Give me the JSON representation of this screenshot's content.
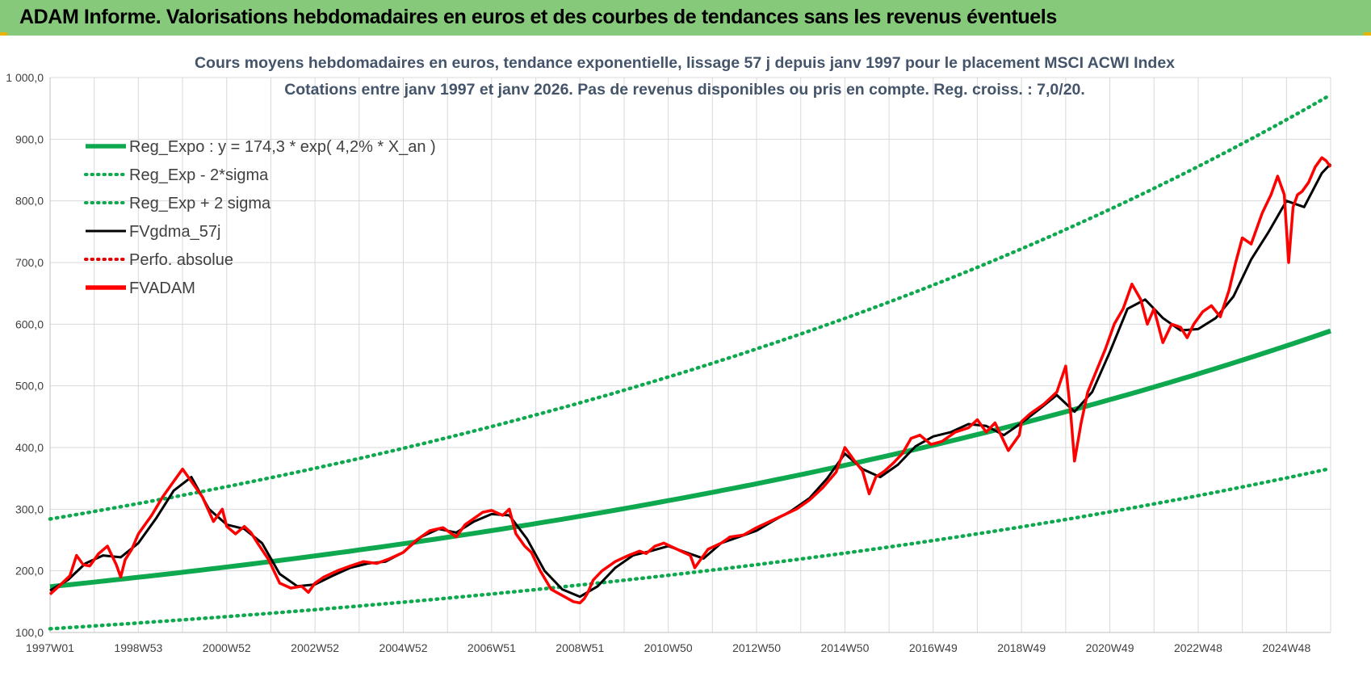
{
  "window": {
    "title": "ADAM Informe. Valorisations hebdomadaires en euros et des courbes de tendances sans les revenus éventuels"
  },
  "colors": {
    "title_bar": "#86c97a",
    "grid": "#d9d9d9",
    "regression": "#0ea84f",
    "sigma_band": "#0ea84f",
    "gdma": "#000000",
    "perfo": "#e00000",
    "fvadam": "#ff0000"
  },
  "chart_data": {
    "type": "line",
    "title_line1": "Cours moyens hebdomadaires en euros, tendance exponentielle, lissage 57 j depuis janv 1997  pour le placement MSCI ACWI Index",
    "title_line2": "Cotations entre janv 1997 et janv 2026. Pas de revenus disponibles ou pris  en compte. Reg. croiss. : 7,0/20.",
    "xlabel": "",
    "ylabel": "",
    "ylim": [
      100,
      1000
    ],
    "xlim": [
      1997.0,
      2026.0
    ],
    "yticks": [
      100,
      200,
      300,
      400,
      500,
      600,
      700,
      800,
      900,
      1000
    ],
    "ytick_labels": [
      "100,0",
      "200,0",
      "300,0",
      "400,0",
      "500,0",
      "600,0",
      "700,0",
      "800,0",
      "900,0",
      "1 000,0"
    ],
    "xtick_labels": [
      "1997W01",
      "1998W53",
      "2000W52",
      "2002W52",
      "2004W52",
      "2006W51",
      "2008W51",
      "2010W50",
      "2012W50",
      "2014W50",
      "2016W49",
      "2018W49",
      "2020W49",
      "2022W48",
      "2024W48"
    ],
    "xtick_years": [
      1997.0,
      1999.0,
      2001.0,
      2003.0,
      2005.0,
      2007.0,
      2009.0,
      2011.0,
      2013.0,
      2015.0,
      2017.0,
      2019.0,
      2021.0,
      2023.0,
      2025.0
    ],
    "grid": true,
    "legend_position": "top-left",
    "legend": [
      {
        "label": "Reg_Expo : y = 174,3 * exp( 4,2% *  X_an )",
        "color": "#0ea84f",
        "style": "solid-thick"
      },
      {
        "label": "Reg_Exp - 2*sigma",
        "color": "#0ea84f",
        "style": "dotted"
      },
      {
        "label": "Reg_Exp + 2 sigma",
        "color": "#0ea84f",
        "style": "dotted"
      },
      {
        "label": "FVgdma_57j",
        "color": "#000000",
        "style": "solid"
      },
      {
        "label": "Perfo. absolue",
        "color": "#e00000",
        "style": "dotted"
      },
      {
        "label": "FVADAM",
        "color": "#ff0000",
        "style": "solid-thick"
      }
    ],
    "regression": {
      "a": 174.3,
      "g": 0.042,
      "x0": 1997.0
    },
    "band_lower": {
      "start": 106,
      "end": 366
    },
    "band_upper": {
      "start": 284,
      "end": 972
    },
    "fvadam": {
      "x": [
        1997.0,
        1997.2,
        1997.45,
        1997.6,
        1997.75,
        1997.9,
        1998.1,
        1998.3,
        1998.5,
        1998.6,
        1998.7,
        1998.85,
        1999.0,
        1999.3,
        1999.55,
        1999.8,
        2000.0,
        2000.2,
        2000.45,
        2000.7,
        2000.9,
        2001.0,
        2001.2,
        2001.4,
        2001.55,
        2001.7,
        2001.95,
        2002.2,
        2002.45,
        2002.7,
        2002.85,
        2003.0,
        2003.2,
        2003.5,
        2003.8,
        2004.1,
        2004.4,
        2004.7,
        2005.0,
        2005.3,
        2005.6,
        2005.9,
        2006.2,
        2006.4,
        2006.6,
        2006.8,
        2007.0,
        2007.25,
        2007.4,
        2007.55,
        2007.75,
        2007.9,
        2008.1,
        2008.35,
        2008.6,
        2008.85,
        2009.0,
        2009.1,
        2009.18,
        2009.3,
        2009.5,
        2009.8,
        2010.1,
        2010.35,
        2010.5,
        2010.7,
        2010.9,
        2011.2,
        2011.5,
        2011.6,
        2011.7,
        2011.9,
        2012.2,
        2012.4,
        2012.7,
        2013.0,
        2013.3,
        2013.6,
        2013.9,
        2014.2,
        2014.5,
        2014.8,
        2015.0,
        2015.2,
        2015.4,
        2015.55,
        2015.7,
        2015.9,
        2016.1,
        2016.3,
        2016.5,
        2016.7,
        2016.95,
        2017.2,
        2017.5,
        2017.8,
        2018.0,
        2018.2,
        2018.4,
        2018.7,
        2018.95,
        2019.0,
        2019.2,
        2019.5,
        2019.8,
        2020.0,
        2020.12,
        2020.2,
        2020.35,
        2020.5,
        2020.7,
        2020.9,
        2021.1,
        2021.3,
        2021.5,
        2021.7,
        2021.85,
        2022.0,
        2022.2,
        2022.4,
        2022.6,
        2022.75,
        2022.9,
        2023.1,
        2023.3,
        2023.5,
        2023.7,
        2023.85,
        2024.0,
        2024.2,
        2024.45,
        2024.65,
        2024.8,
        2024.95,
        2025.05,
        2025.15,
        2025.25,
        2025.35,
        2025.5,
        2025.65,
        2025.8,
        2025.9,
        2026.0
      ],
      "y": [
        162,
        175,
        192,
        225,
        210,
        208,
        228,
        240,
        210,
        190,
        218,
        235,
        260,
        290,
        320,
        345,
        365,
        345,
        320,
        280,
        300,
        272,
        260,
        272,
        262,
        245,
        218,
        180,
        172,
        175,
        165,
        180,
        190,
        200,
        208,
        215,
        212,
        220,
        230,
        250,
        265,
        270,
        255,
        275,
        285,
        295,
        298,
        290,
        300,
        260,
        240,
        230,
        200,
        170,
        160,
        150,
        148,
        155,
        165,
        185,
        200,
        215,
        225,
        232,
        228,
        240,
        245,
        235,
        225,
        205,
        215,
        235,
        245,
        255,
        258,
        270,
        280,
        290,
        300,
        315,
        335,
        360,
        400,
        380,
        362,
        325,
        352,
        362,
        375,
        390,
        415,
        420,
        405,
        410,
        425,
        432,
        445,
        425,
        440,
        395,
        420,
        442,
        455,
        470,
        490,
        532,
        450,
        378,
        440,
        490,
        525,
        560,
        600,
        625,
        665,
        640,
        600,
        625,
        570,
        600,
        595,
        578,
        600,
        620,
        630,
        612,
        655,
        700,
        740,
        730,
        780,
        810,
        840,
        810,
        700,
        790,
        810,
        815,
        830,
        855,
        870,
        865,
        855
      ]
    },
    "fvgdma": {
      "x": [
        1997.0,
        1997.4,
        1997.8,
        1998.2,
        1998.6,
        1999.0,
        1999.4,
        1999.8,
        2000.2,
        2000.6,
        2001.0,
        2001.4,
        2001.8,
        2002.2,
        2002.6,
        2003.0,
        2003.4,
        2003.8,
        2004.2,
        2004.6,
        2005.0,
        2005.4,
        2005.8,
        2006.2,
        2006.6,
        2007.0,
        2007.4,
        2007.8,
        2008.2,
        2008.6,
        2009.0,
        2009.4,
        2009.8,
        2010.2,
        2010.6,
        2011.0,
        2011.4,
        2011.8,
        2012.2,
        2012.6,
        2013.0,
        2013.4,
        2013.8,
        2014.2,
        2014.6,
        2015.0,
        2015.4,
        2015.8,
        2016.2,
        2016.6,
        2017.0,
        2017.4,
        2017.8,
        2018.2,
        2018.6,
        2019.0,
        2019.4,
        2019.8,
        2020.2,
        2020.6,
        2021.0,
        2021.4,
        2021.8,
        2022.2,
        2022.6,
        2023.0,
        2023.4,
        2023.8,
        2024.2,
        2024.6,
        2025.0,
        2025.4,
        2025.8,
        2026.0
      ],
      "y": [
        168,
        185,
        212,
        225,
        222,
        245,
        285,
        330,
        352,
        300,
        275,
        268,
        245,
        195,
        175,
        178,
        192,
        205,
        212,
        215,
        230,
        255,
        268,
        262,
        280,
        292,
        290,
        252,
        200,
        170,
        158,
        175,
        205,
        225,
        232,
        240,
        230,
        220,
        245,
        255,
        265,
        282,
        298,
        318,
        350,
        390,
        365,
        352,
        372,
        402,
        418,
        425,
        438,
        435,
        420,
        440,
        462,
        485,
        458,
        490,
        555,
        625,
        640,
        610,
        590,
        592,
        610,
        645,
        705,
        750,
        800,
        790,
        845,
        860
      ]
    }
  }
}
